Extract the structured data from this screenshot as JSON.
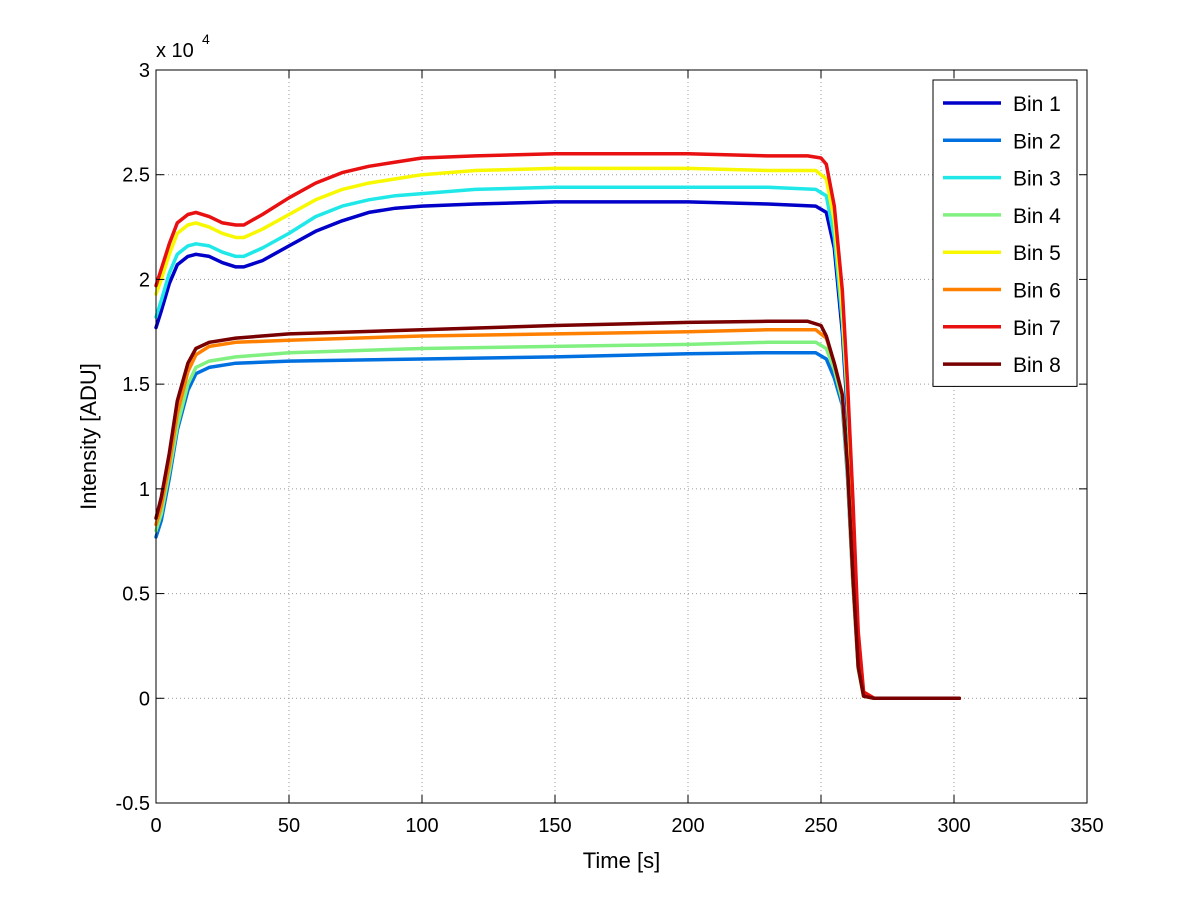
{
  "chart_data": {
    "type": "line",
    "title": "",
    "xlabel": "Time [s]",
    "ylabel": "Intensity [ADU]",
    "y_multiplier": "x 10",
    "y_exponent": "4",
    "xlim": [
      0,
      350
    ],
    "ylim": [
      -0.5,
      3
    ],
    "xticks": [
      0,
      50,
      100,
      150,
      200,
      250,
      300,
      350
    ],
    "yticks": [
      -0.5,
      0,
      0.5,
      1,
      1.5,
      2,
      2.5,
      3
    ],
    "xtick_labels": [
      "0",
      "50",
      "100",
      "150",
      "200",
      "250",
      "300",
      "350"
    ],
    "ytick_labels": [
      "-0.5",
      "0",
      "0.5",
      "1",
      "1.5",
      "2",
      "2.5",
      "3"
    ],
    "grid": true,
    "legend_position": "top-right",
    "series": [
      {
        "name": "Bin 1",
        "color": "#0000c8",
        "x": [
          0,
          2,
          5,
          8,
          12,
          15,
          20,
          25,
          30,
          33,
          40,
          50,
          60,
          70,
          80,
          90,
          100,
          120,
          150,
          200,
          230,
          248,
          252,
          255,
          258,
          260,
          262,
          264,
          266,
          270,
          280,
          300,
          302
        ],
        "y": [
          1.77,
          1.85,
          1.98,
          2.07,
          2.11,
          2.12,
          2.11,
          2.08,
          2.06,
          2.06,
          2.09,
          2.16,
          2.23,
          2.28,
          2.32,
          2.34,
          2.35,
          2.36,
          2.37,
          2.37,
          2.36,
          2.35,
          2.32,
          2.15,
          1.75,
          1.35,
          0.8,
          0.25,
          0.02,
          0,
          0,
          0,
          0
        ]
      },
      {
        "name": "Bin 2",
        "color": "#0070e0",
        "x": [
          0,
          2,
          5,
          8,
          12,
          15,
          20,
          30,
          50,
          100,
          150,
          200,
          230,
          248,
          252,
          255,
          258,
          260,
          262,
          264,
          266,
          270,
          280,
          300,
          302
        ],
        "y": [
          0.77,
          0.85,
          1.05,
          1.28,
          1.47,
          1.55,
          1.58,
          1.6,
          1.61,
          1.62,
          1.63,
          1.645,
          1.65,
          1.65,
          1.62,
          1.53,
          1.4,
          1.05,
          0.55,
          0.15,
          0.01,
          0,
          0,
          0,
          0
        ]
      },
      {
        "name": "Bin 3",
        "color": "#20e8e8",
        "x": [
          0,
          2,
          5,
          8,
          12,
          15,
          20,
          25,
          30,
          33,
          40,
          50,
          60,
          70,
          80,
          90,
          100,
          120,
          150,
          200,
          230,
          248,
          252,
          255,
          258,
          260,
          262,
          264,
          266,
          270,
          280,
          300,
          302
        ],
        "y": [
          1.82,
          1.9,
          2.03,
          2.12,
          2.16,
          2.17,
          2.16,
          2.13,
          2.11,
          2.11,
          2.15,
          2.22,
          2.3,
          2.35,
          2.38,
          2.4,
          2.41,
          2.43,
          2.44,
          2.44,
          2.44,
          2.43,
          2.4,
          2.2,
          1.8,
          1.4,
          0.85,
          0.28,
          0.02,
          0,
          0,
          0,
          0
        ]
      },
      {
        "name": "Bin 4",
        "color": "#80f080",
        "x": [
          0,
          2,
          5,
          8,
          12,
          15,
          20,
          30,
          50,
          100,
          150,
          200,
          230,
          248,
          252,
          255,
          258,
          260,
          262,
          264,
          266,
          270,
          280,
          300,
          302
        ],
        "y": [
          0.8,
          0.88,
          1.08,
          1.3,
          1.5,
          1.58,
          1.61,
          1.63,
          1.65,
          1.67,
          1.68,
          1.69,
          1.7,
          1.7,
          1.67,
          1.57,
          1.42,
          1.07,
          0.55,
          0.14,
          0.01,
          0,
          0,
          0,
          0
        ]
      },
      {
        "name": "Bin 5",
        "color": "#f8f800",
        "x": [
          0,
          2,
          5,
          8,
          12,
          15,
          20,
          25,
          30,
          33,
          40,
          50,
          60,
          70,
          80,
          90,
          100,
          120,
          150,
          200,
          230,
          248,
          252,
          255,
          258,
          260,
          262,
          264,
          266,
          270,
          280,
          300,
          302
        ],
        "y": [
          1.93,
          2.0,
          2.12,
          2.22,
          2.26,
          2.27,
          2.25,
          2.22,
          2.2,
          2.2,
          2.24,
          2.31,
          2.38,
          2.43,
          2.46,
          2.48,
          2.5,
          2.52,
          2.53,
          2.53,
          2.52,
          2.52,
          2.48,
          2.28,
          1.86,
          1.45,
          0.9,
          0.3,
          0.03,
          0,
          0,
          0,
          0
        ]
      },
      {
        "name": "Bin 6",
        "color": "#ff8000",
        "x": [
          0,
          2,
          5,
          8,
          12,
          15,
          20,
          30,
          50,
          100,
          150,
          200,
          230,
          248,
          252,
          255,
          258,
          260,
          262,
          264,
          266,
          270,
          280,
          300,
          302
        ],
        "y": [
          0.83,
          0.92,
          1.12,
          1.36,
          1.56,
          1.64,
          1.68,
          1.7,
          1.71,
          1.73,
          1.74,
          1.75,
          1.76,
          1.76,
          1.72,
          1.6,
          1.45,
          1.1,
          0.57,
          0.15,
          0.01,
          0,
          0,
          0,
          0
        ]
      },
      {
        "name": "Bin 7",
        "color": "#e81010",
        "x": [
          0,
          2,
          5,
          8,
          12,
          15,
          20,
          25,
          30,
          33,
          40,
          50,
          60,
          70,
          80,
          90,
          100,
          120,
          150,
          200,
          230,
          245,
          250,
          252,
          255,
          258,
          260,
          262,
          264,
          266,
          270,
          280,
          300,
          302
        ],
        "y": [
          1.97,
          2.05,
          2.17,
          2.27,
          2.31,
          2.32,
          2.3,
          2.27,
          2.26,
          2.26,
          2.31,
          2.39,
          2.46,
          2.51,
          2.54,
          2.56,
          2.58,
          2.59,
          2.6,
          2.6,
          2.59,
          2.59,
          2.58,
          2.55,
          2.35,
          1.95,
          1.5,
          0.95,
          0.32,
          0.03,
          0,
          0,
          0,
          0
        ]
      },
      {
        "name": "Bin 8",
        "color": "#780000",
        "x": [
          0,
          2,
          5,
          8,
          12,
          15,
          20,
          30,
          50,
          100,
          150,
          200,
          230,
          245,
          250,
          252,
          255,
          258,
          260,
          262,
          264,
          266,
          270,
          280,
          300,
          302
        ],
        "y": [
          0.86,
          0.96,
          1.17,
          1.42,
          1.6,
          1.67,
          1.7,
          1.72,
          1.74,
          1.76,
          1.78,
          1.795,
          1.8,
          1.8,
          1.78,
          1.73,
          1.6,
          1.45,
          1.1,
          0.58,
          0.15,
          0.01,
          0,
          0,
          0,
          0
        ]
      }
    ]
  }
}
